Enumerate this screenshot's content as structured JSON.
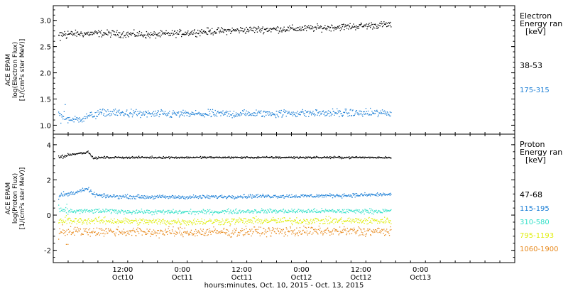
{
  "colors": {
    "black": "#000000",
    "blue": "#1c7fd6",
    "cyan": "#33e0c8",
    "yellow": "#e0ee10",
    "orange": "#e88a1e",
    "axis": "#000000",
    "background": "#ffffff"
  },
  "x_axis": {
    "title": "hours:minutes, Oct. 10, 2015 - Oct. 13, 2015",
    "range_hours": [
      0,
      93
    ],
    "ticks": [
      {
        "hour": 14,
        "time": "12:00",
        "date": "Oct10"
      },
      {
        "hour": 26,
        "time": "0:00",
        "date": "Oct11"
      },
      {
        "hour": 38,
        "time": "12:00",
        "date": "Oct11"
      },
      {
        "hour": 50,
        "time": "0:00",
        "date": "Oct12"
      },
      {
        "hour": 62,
        "time": "12:00",
        "date": "Oct12"
      },
      {
        "hour": 74,
        "time": "0:00",
        "date": "Oct13"
      }
    ]
  },
  "chart_data": [
    {
      "type": "scatter",
      "panel": "electron",
      "ylabel": [
        "ACE EPAM",
        "log(Electron Flux)",
        "[1/(cm²s ster MeV)]"
      ],
      "ylim": [
        0.83,
        3.28
      ],
      "yticks": [
        "1.0",
        "1.5",
        "2.0",
        "2.5",
        "3.0"
      ],
      "ytick_values": [
        1.0,
        1.5,
        2.0,
        2.5,
        3.0
      ],
      "legend_title": [
        "Electron",
        "Energy ran",
        "[keV]"
      ],
      "series": [
        {
          "name": "38-53",
          "color": "#000000",
          "x": [
            1,
            4,
            10,
            20,
            30,
            40,
            50,
            60,
            68
          ],
          "y": [
            2.72,
            2.75,
            2.76,
            2.73,
            2.79,
            2.83,
            2.85,
            2.89,
            2.93
          ],
          "spread": 0.06
        },
        {
          "name": "175-315",
          "color": "#1c7fd6",
          "x": [
            1,
            4,
            10,
            20,
            30,
            40,
            50,
            60,
            68
          ],
          "y": [
            1.22,
            1.1,
            1.25,
            1.22,
            1.22,
            1.23,
            1.24,
            1.24,
            1.24
          ],
          "spread": 0.07
        }
      ]
    },
    {
      "type": "scatter",
      "panel": "proton",
      "ylabel": [
        "ACE EPAM",
        "log(Proton Flux)",
        "[1/(cm²s ster MeV)]"
      ],
      "ylim": [
        -2.7,
        4.6
      ],
      "yticks": [
        "-2",
        "0",
        "2",
        "4"
      ],
      "ytick_values": [
        -2,
        0,
        2,
        4
      ],
      "legend_title": [
        "Proton",
        "Energy ran",
        "[keV]"
      ],
      "series": [
        {
          "name": "47-68",
          "color": "#000000",
          "x": [
            1,
            4,
            7,
            8,
            10,
            20,
            30,
            40,
            50,
            60,
            68
          ],
          "y": [
            3.3,
            3.5,
            3.6,
            3.25,
            3.3,
            3.3,
            3.3,
            3.3,
            3.3,
            3.3,
            3.3
          ],
          "spread": 0.05
        },
        {
          "name": "115-195",
          "color": "#1c7fd6",
          "x": [
            1,
            4,
            7,
            8,
            10,
            20,
            30,
            40,
            50,
            60,
            68
          ],
          "y": [
            1.1,
            1.3,
            1.5,
            1.2,
            1.1,
            1.05,
            1.05,
            1.1,
            1.1,
            1.15,
            1.2
          ],
          "spread": 0.1
        },
        {
          "name": "310-580",
          "color": "#33e0c8",
          "x": [
            1,
            10,
            20,
            30,
            40,
            50,
            60,
            68
          ],
          "y": [
            0.25,
            0.25,
            0.2,
            0.2,
            0.25,
            0.25,
            0.25,
            0.25
          ],
          "spread": 0.12
        },
        {
          "name": "795-1193",
          "color": "#e0ee10",
          "x": [
            1,
            10,
            20,
            30,
            40,
            50,
            60,
            68
          ],
          "y": [
            -0.3,
            -0.3,
            -0.35,
            -0.35,
            -0.3,
            -0.3,
            -0.3,
            -0.3
          ],
          "spread": 0.18
        },
        {
          "name": "1060-1900",
          "color": "#e88a1e",
          "x": [
            1,
            10,
            20,
            30,
            40,
            50,
            60,
            68
          ],
          "y": [
            -0.9,
            -0.9,
            -0.95,
            -0.95,
            -0.9,
            -0.9,
            -0.9,
            -0.9
          ],
          "spread": 0.25
        }
      ]
    }
  ]
}
